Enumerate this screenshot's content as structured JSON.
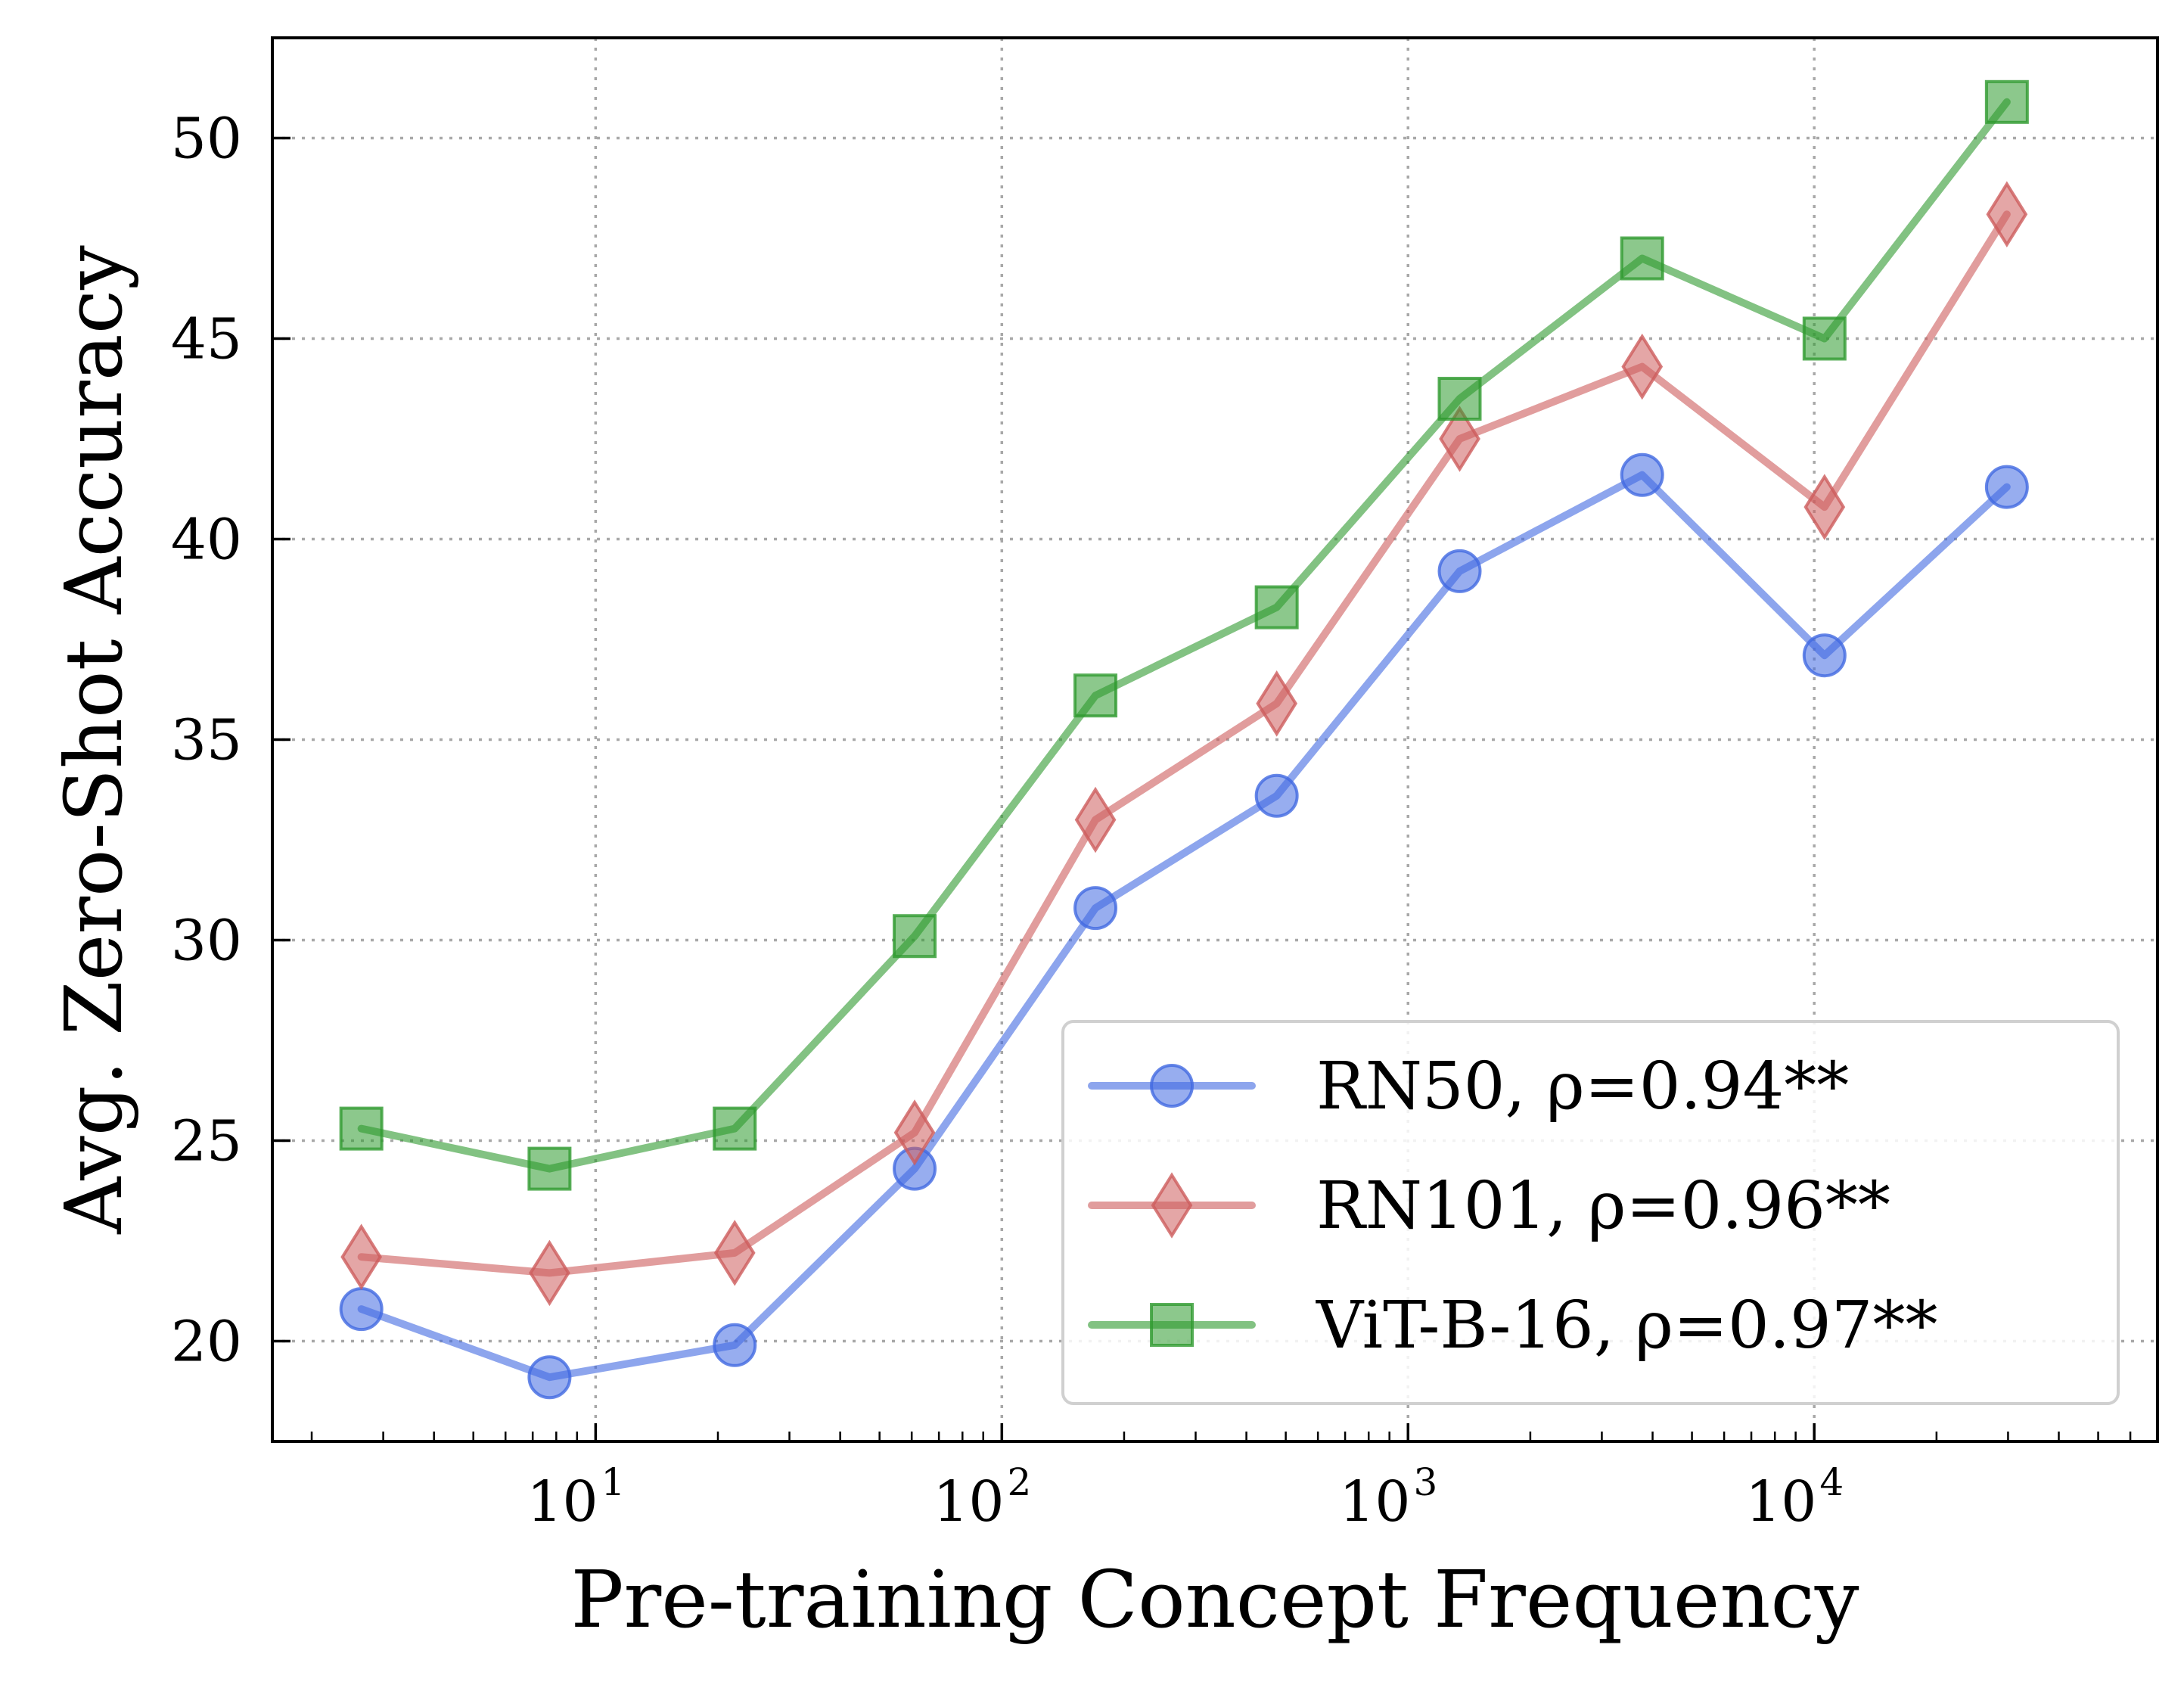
{
  "chart_data": {
    "type": "line",
    "title": "",
    "xlabel": "Pre-training Concept Frequency",
    "ylabel": "Avg. Zero-Shot Accuracy",
    "xscale": "log",
    "xlim": [
      1.6,
      70000
    ],
    "ylim": [
      17.5,
      52.5
    ],
    "x_ticks": [
      {
        "value": 10,
        "base": "10",
        "exp": "1"
      },
      {
        "value": 100,
        "base": "10",
        "exp": "2"
      },
      {
        "value": 1000,
        "base": "10",
        "exp": "3"
      },
      {
        "value": 10000,
        "base": "10",
        "exp": "4"
      }
    ],
    "y_ticks": [
      {
        "value": 20,
        "label": "20"
      },
      {
        "value": 25,
        "label": "25"
      },
      {
        "value": 30,
        "label": "30"
      },
      {
        "value": 35,
        "label": "35"
      },
      {
        "value": 40,
        "label": "40"
      },
      {
        "value": 45,
        "label": "45"
      },
      {
        "value": 50,
        "label": "50"
      }
    ],
    "grid": true,
    "legend_position": "lower-right",
    "x": [
      2.65,
      7.7,
      22.0,
      61.0,
      170.0,
      475.0,
      1340.0,
      3770.0,
      10600.0,
      29800.0
    ],
    "series": [
      {
        "name": "RN50, ρ=0.94**",
        "color": "#4169e1",
        "marker": "circle",
        "values": [
          20.8,
          19.1,
          19.9,
          24.3,
          30.8,
          33.6,
          39.2,
          41.6,
          37.1,
          41.3
        ]
      },
      {
        "name": "RN101, ρ=0.96**",
        "color": "#cd5c5c",
        "marker": "diamond",
        "values": [
          22.1,
          21.7,
          22.2,
          25.2,
          33.0,
          35.9,
          42.5,
          44.3,
          40.8,
          48.1
        ]
      },
      {
        "name": "ViT-B-16, ρ=0.97**",
        "color": "#2e9a2e",
        "marker": "square",
        "values": [
          25.3,
          24.3,
          25.3,
          30.1,
          36.1,
          38.3,
          43.5,
          47.0,
          45.0,
          50.9
        ]
      }
    ]
  }
}
